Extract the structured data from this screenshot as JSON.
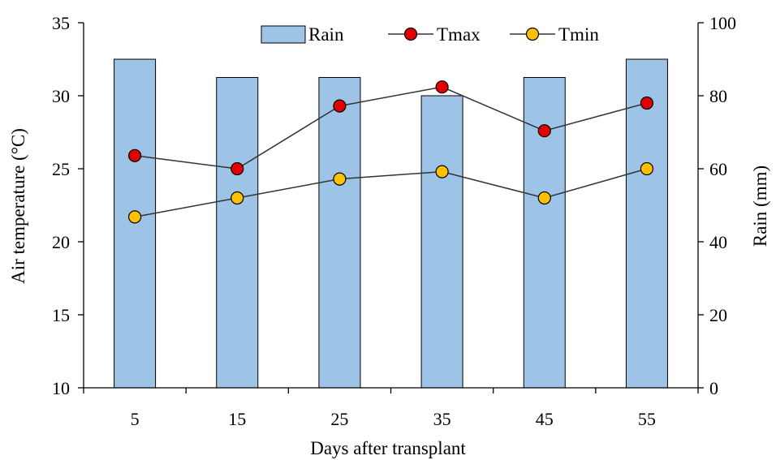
{
  "chart_data": {
    "type": "bar",
    "categories": [
      "5",
      "15",
      "25",
      "35",
      "45",
      "55"
    ],
    "xlabel": "Days after transplant",
    "ylabel_left": "Air temperature (°C)",
    "ylabel_right": "Rain (mm)",
    "ylim_left": [
      10,
      35
    ],
    "yticks_left": [
      "10",
      "15",
      "20",
      "25",
      "30",
      "35"
    ],
    "ylim_right": [
      0,
      100
    ],
    "yticks_right": [
      "0",
      "20",
      "40",
      "60",
      "80",
      "100"
    ],
    "grid": false,
    "legend_position": "top",
    "series": [
      {
        "name": "Rain",
        "kind": "bar",
        "axis": "right",
        "values": [
          90,
          85,
          85,
          80,
          85,
          90
        ],
        "color": "#9dc3e6"
      },
      {
        "name": "Tmax",
        "kind": "line",
        "axis": "left",
        "values": [
          25.9,
          25.0,
          29.3,
          30.6,
          27.6,
          29.5
        ],
        "color": "#e00000"
      },
      {
        "name": "Tmin",
        "kind": "line",
        "axis": "left",
        "values": [
          21.7,
          23.0,
          24.3,
          24.8,
          23.0,
          25.0
        ],
        "color": "#ffc000"
      }
    ]
  }
}
